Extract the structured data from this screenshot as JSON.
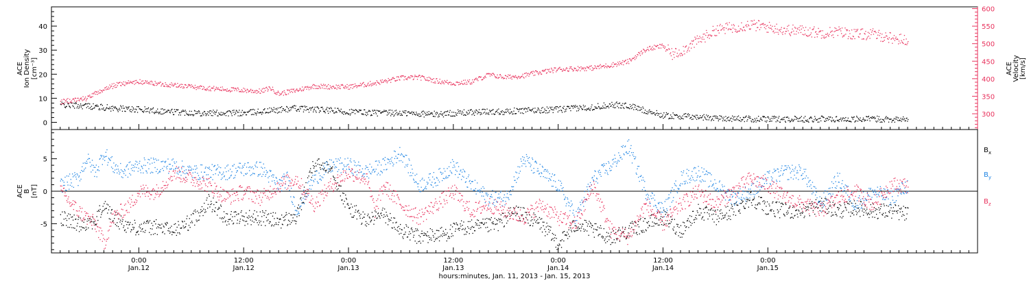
{
  "chart_data": [
    {
      "panel": "top",
      "type": "scatter",
      "ylabel_left": [
        "ACE",
        "Ion Density",
        "[cm⁻³]"
      ],
      "ylabel_right": [
        "ACE",
        "Velocity",
        "[km/s]"
      ],
      "ylim_left": [
        -3,
        48
      ],
      "yticks_left": [
        "0",
        "10",
        "20",
        "30",
        "40"
      ],
      "ylim_right": [
        255,
        605
      ],
      "yticks_right": [
        "300",
        "350",
        "400",
        "450",
        "500",
        "550",
        "600"
      ],
      "grid": false,
      "series": [
        {
          "axis": "left",
          "color": "#000000",
          "points": [
            [
              -9,
              7.5
            ],
            [
              -6,
              7
            ],
            [
              -3,
              6
            ],
            [
              0,
              5.5
            ],
            [
              4,
              4.5
            ],
            [
              8,
              4
            ],
            [
              12,
              4
            ],
            [
              15,
              5
            ],
            [
              18,
              6
            ],
            [
              20,
              5.5
            ],
            [
              24,
              4.5
            ],
            [
              28,
              4
            ],
            [
              30,
              4
            ],
            [
              34,
              3.5
            ],
            [
              36,
              4
            ],
            [
              40,
              4.5
            ],
            [
              44,
              5
            ],
            [
              48,
              5.5
            ],
            [
              52,
              6.5
            ],
            [
              54,
              7.5
            ],
            [
              56,
              7
            ],
            [
              58,
              5
            ],
            [
              60,
              3
            ],
            [
              63,
              2.5
            ],
            [
              66,
              2
            ],
            [
              70,
              1.5
            ],
            [
              74,
              1.5
            ],
            [
              78,
              1.5
            ],
            [
              82,
              1.5
            ],
            [
              86,
              1.5
            ],
            [
              88,
              1.2
            ]
          ]
        },
        {
          "axis": "right",
          "color": "#e8305b",
          "points": [
            [
              -9,
              335
            ],
            [
              -6,
              345
            ],
            [
              -4,
              372
            ],
            [
              -2,
              388
            ],
            [
              0,
              392
            ],
            [
              3,
              385
            ],
            [
              6,
              378
            ],
            [
              9,
              372
            ],
            [
              12,
              368
            ],
            [
              14,
              365
            ],
            [
              15,
              375
            ],
            [
              16,
              358
            ],
            [
              18,
              368
            ],
            [
              20,
              380
            ],
            [
              22,
              378
            ],
            [
              24,
              378
            ],
            [
              26,
              385
            ],
            [
              28,
              393
            ],
            [
              30,
              403
            ],
            [
              32,
              405
            ],
            [
              34,
              395
            ],
            [
              36,
              388
            ],
            [
              38,
              392
            ],
            [
              40,
              412
            ],
            [
              42,
              405
            ],
            [
              44,
              410
            ],
            [
              46,
              420
            ],
            [
              48,
              428
            ],
            [
              50,
              430
            ],
            [
              52,
              432
            ],
            [
              54,
              440
            ],
            [
              56,
              450
            ],
            [
              58,
              485
            ],
            [
              60,
              495
            ],
            [
              61,
              470
            ],
            [
              62,
              480
            ],
            [
              64,
              510
            ],
            [
              66,
              540
            ],
            [
              68,
              548
            ],
            [
              70,
              555
            ],
            [
              72,
              548
            ],
            [
              74,
              540
            ],
            [
              76,
              538
            ],
            [
              78,
              532
            ],
            [
              80,
              535
            ],
            [
              82,
              528
            ],
            [
              84,
              528
            ],
            [
              86,
              518
            ],
            [
              88,
              510
            ]
          ]
        }
      ]
    },
    {
      "panel": "bottom",
      "type": "scatter",
      "ylabel": [
        "ACE",
        "B",
        "[nT]"
      ],
      "ylim": [
        -9.5,
        9.5
      ],
      "yticks": [
        "-5",
        "0",
        "5"
      ],
      "xlabel": "hours:minutes, Jan. 11, 2013 - Jan. 15, 2013",
      "xlim": [
        -10,
        96
      ],
      "xticks": [
        {
          "time": "0:00",
          "day": "Jan.12"
        },
        {
          "time": "12:00",
          "day": "Jan.12"
        },
        {
          "time": "0:00",
          "day": "Jan.13"
        },
        {
          "time": "12:00",
          "day": "Jan.13"
        },
        {
          "time": "0:00",
          "day": "Jan.14"
        },
        {
          "time": "12:00",
          "day": "Jan.14"
        },
        {
          "time": "0:00",
          "day": "Jan.15"
        }
      ],
      "legend": "right",
      "series": [
        {
          "name": "Bx",
          "label_main": "B",
          "label_sub": "x",
          "color": "#000000",
          "points": [
            [
              -9,
              -4
            ],
            [
              -7,
              -5
            ],
            [
              -5,
              -4.5
            ],
            [
              -4,
              -2
            ],
            [
              -3,
              -4
            ],
            [
              -1,
              -5.5
            ],
            [
              2,
              -5.5
            ],
            [
              4,
              -6
            ],
            [
              6,
              -4.5
            ],
            [
              8,
              -1.5
            ],
            [
              10,
              -4
            ],
            [
              12,
              -4
            ],
            [
              14,
              -4
            ],
            [
              16,
              -4.5
            ],
            [
              18,
              -4
            ],
            [
              19,
              0
            ],
            [
              20,
              4
            ],
            [
              22,
              4
            ],
            [
              23,
              0
            ],
            [
              24,
              -2.5
            ],
            [
              26,
              -4.5
            ],
            [
              28,
              -3.5
            ],
            [
              30,
              -6
            ],
            [
              32,
              -7
            ],
            [
              35,
              -6.5
            ],
            [
              37,
              -5.5
            ],
            [
              39,
              -5.5
            ],
            [
              41,
              -5
            ],
            [
              43,
              -3
            ],
            [
              46,
              -5
            ],
            [
              48,
              -8
            ],
            [
              50,
              -5
            ],
            [
              52,
              -6
            ],
            [
              54,
              -7
            ],
            [
              56,
              -6
            ],
            [
              58,
              -5
            ],
            [
              60,
              -4
            ],
            [
              62,
              -6
            ],
            [
              64,
              -3
            ],
            [
              66,
              -4
            ],
            [
              68,
              -3
            ],
            [
              70,
              -1
            ],
            [
              72,
              -2.5
            ],
            [
              74,
              -3
            ],
            [
              76,
              -3
            ],
            [
              78,
              -2
            ],
            [
              80,
              -3
            ],
            [
              82,
              -2.5
            ],
            [
              84,
              -3
            ],
            [
              86,
              -3
            ],
            [
              88,
              -3.5
            ]
          ]
        },
        {
          "name": "By",
          "label_main": "B",
          "label_sub": "y",
          "color": "#1e84e3",
          "points": [
            [
              -9,
              1
            ],
            [
              -7,
              2
            ],
            [
              -6,
              5
            ],
            [
              -5,
              3
            ],
            [
              -4,
              6
            ],
            [
              -3,
              4
            ],
            [
              -2,
              3
            ],
            [
              0,
              4
            ],
            [
              2,
              4
            ],
            [
              4,
              4
            ],
            [
              6,
              3
            ],
            [
              8,
              3
            ],
            [
              10,
              3
            ],
            [
              12,
              3.5
            ],
            [
              14,
              3.5
            ],
            [
              16,
              1
            ],
            [
              17,
              2
            ],
            [
              18,
              -3
            ],
            [
              20,
              2
            ],
            [
              22,
              4
            ],
            [
              24,
              4
            ],
            [
              26,
              3
            ],
            [
              28,
              4
            ],
            [
              30,
              6
            ],
            [
              32,
              1
            ],
            [
              34,
              2
            ],
            [
              36,
              4
            ],
            [
              38,
              1
            ],
            [
              40,
              -1
            ],
            [
              42,
              -1
            ],
            [
              44,
              5
            ],
            [
              46,
              3
            ],
            [
              48,
              1
            ],
            [
              50,
              -4
            ],
            [
              52,
              2
            ],
            [
              54,
              4
            ],
            [
              56,
              7
            ],
            [
              58,
              0
            ],
            [
              60,
              -3
            ],
            [
              62,
              2
            ],
            [
              64,
              3
            ],
            [
              66,
              1
            ],
            [
              68,
              -1
            ],
            [
              70,
              0
            ],
            [
              72,
              2
            ],
            [
              74,
              3
            ],
            [
              76,
              3
            ],
            [
              78,
              -2
            ],
            [
              80,
              2
            ],
            [
              82,
              -2
            ],
            [
              84,
              0
            ],
            [
              86,
              -1
            ],
            [
              88,
              1
            ]
          ]
        },
        {
          "name": "Bz",
          "label_main": "B",
          "label_sub": "z",
          "color": "#e8305b",
          "points": [
            [
              -9,
              0
            ],
            [
              -7,
              -3
            ],
            [
              -5,
              -5
            ],
            [
              -4,
              -8
            ],
            [
              -3,
              -4
            ],
            [
              -1,
              -2
            ],
            [
              0,
              0
            ],
            [
              2,
              0
            ],
            [
              4,
              3
            ],
            [
              6,
              2
            ],
            [
              8,
              1
            ],
            [
              10,
              -1
            ],
            [
              12,
              0
            ],
            [
              14,
              -1
            ],
            [
              16,
              1
            ],
            [
              18,
              2
            ],
            [
              20,
              -2
            ],
            [
              22,
              1
            ],
            [
              24,
              3
            ],
            [
              26,
              2
            ],
            [
              27,
              -3
            ],
            [
              28,
              1
            ],
            [
              30,
              -2
            ],
            [
              32,
              -4
            ],
            [
              34,
              -2
            ],
            [
              36,
              0
            ],
            [
              38,
              -3
            ],
            [
              40,
              -2
            ],
            [
              42,
              -3
            ],
            [
              44,
              -4
            ],
            [
              46,
              -2
            ],
            [
              48,
              -4
            ],
            [
              50,
              -5
            ],
            [
              52,
              1
            ],
            [
              54,
              -6
            ],
            [
              56,
              -7
            ],
            [
              58,
              -2
            ],
            [
              60,
              -5
            ],
            [
              62,
              -2
            ],
            [
              64,
              0
            ],
            [
              66,
              -2
            ],
            [
              68,
              0
            ],
            [
              70,
              2
            ],
            [
              72,
              1
            ],
            [
              74,
              -1
            ],
            [
              76,
              -2
            ],
            [
              78,
              -3
            ],
            [
              80,
              -1
            ],
            [
              82,
              0
            ],
            [
              84,
              -2
            ],
            [
              86,
              1
            ],
            [
              88,
              1
            ]
          ]
        }
      ]
    }
  ]
}
